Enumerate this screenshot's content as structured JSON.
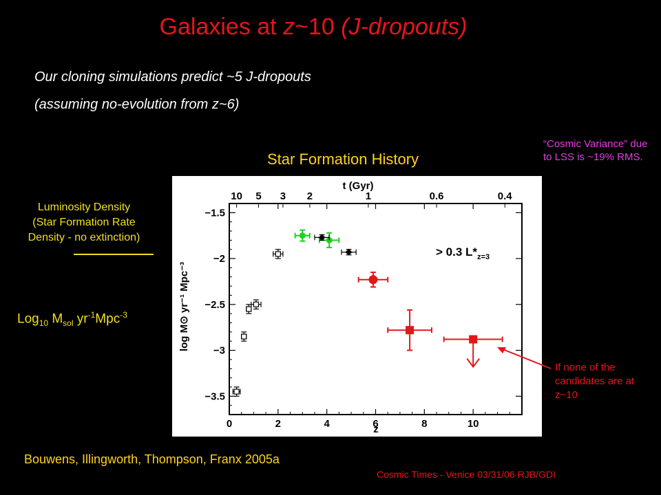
{
  "slide": {
    "title_part1": "Galaxies at ",
    "title_part2": "z",
    "title_part3": "~10 ",
    "title_part4": "(J-dropouts)",
    "intro_line1": "Our cloning simulations predict  ~5  J-dropouts",
    "intro_line2": "(assuming no-evolution from z~6)",
    "chart_title": "Star Formation History",
    "cosmic_variance": "“Cosmic Variance” due to LSS is ~19% RMS.",
    "lum_line1": "Luminosity Density",
    "lum_line2": "(Star Formation Rate",
    "lum_line3": "Density - no extinction)",
    "units_log": "Log",
    "units_log_sub": "10",
    "units_m": " M",
    "units_m_sub": "sol",
    "units_yr": " yr",
    "units_yr_sup": "-1",
    "units_mpc": "Mpc",
    "units_mpc_sup": "-3",
    "note_right": "If none of the candidates are at z~10",
    "citation": "Bouwens, Illingworth, Thompson, Franx 2005a",
    "footer": "Cosmic Times - Venice 03/31/06  RJB/GDI"
  },
  "colors": {
    "title": "#e8141b",
    "yellow": "#ffd21e",
    "magenta": "#e23ee2",
    "red_points": "#e01818",
    "green_points": "#1ed21e",
    "black_points": "#000000"
  },
  "chart_data": {
    "type": "scatter",
    "xlabel": "z",
    "ylabel": "log M⊙ yr⁻¹ Mpc⁻³",
    "top_axis_label": "t (Gyr)",
    "xlim": [
      0,
      12
    ],
    "ylim": [
      -3.7,
      -1.4
    ],
    "x_ticks": [
      "0",
      "2",
      "4",
      "6",
      "8",
      "10"
    ],
    "y_ticks": [
      "-1.5",
      "-2",
      "-2.5",
      "-3",
      "-3.5"
    ],
    "top_ticks": [
      {
        "label": "10",
        "z": 0.3
      },
      {
        "label": "5",
        "z": 1.2
      },
      {
        "label": "3",
        "z": 2.2
      },
      {
        "label": "2",
        "z": 3.3
      },
      {
        "label": "1",
        "z": 5.7
      },
      {
        "label": "0.6",
        "z": 8.5
      },
      {
        "label": "0.4",
        "z": 11.3
      }
    ],
    "annotation": "> 0.3 L*",
    "annotation_sub": "z=3",
    "series": [
      {
        "color": "#000000",
        "marker": "open-square",
        "points": [
          {
            "x": 0.3,
            "y": -3.45,
            "xerr": 0.15,
            "yerr": 0.05
          },
          {
            "x": 0.6,
            "y": -2.85,
            "xerr": 0.1,
            "yerr": 0.05
          },
          {
            "x": 0.8,
            "y": -2.55,
            "xerr": 0.1,
            "yerr": 0.05
          },
          {
            "x": 1.1,
            "y": -2.5,
            "xerr": 0.2,
            "yerr": 0.05
          },
          {
            "x": 2.0,
            "y": -1.95,
            "xerr": 0.2,
            "yerr": 0.05
          }
        ]
      },
      {
        "color": "#1ed21e",
        "marker": "filled-circle",
        "points": [
          {
            "x": 3.0,
            "y": -1.75,
            "xerr": 0.3,
            "yerr": 0.06
          },
          {
            "x": 4.1,
            "y": -1.8,
            "xerr": 0.4,
            "yerr": 0.08
          }
        ]
      },
      {
        "color": "#000000",
        "marker": "filled-diamond",
        "points": [
          {
            "x": 3.8,
            "y": -1.77,
            "xerr": 0.3,
            "yerr": 0.03
          },
          {
            "x": 4.9,
            "y": -1.93,
            "xerr": 0.3,
            "yerr": 0.03
          }
        ]
      },
      {
        "color": "#e01818",
        "marker": "filled-circle",
        "points": [
          {
            "x": 5.9,
            "y": -2.23,
            "xerr": 0.6,
            "yerr": 0.08
          }
        ]
      },
      {
        "color": "#e01818",
        "marker": "filled-square",
        "points": [
          {
            "x": 7.4,
            "y": -2.78,
            "xerr": 0.9,
            "yerr": 0.22
          }
        ]
      },
      {
        "color": "#e01818",
        "marker": "filled-square",
        "upper_limit": true,
        "points": [
          {
            "x": 10.0,
            "y": -2.88,
            "xerr": 1.2,
            "yerr": 0
          }
        ]
      }
    ]
  }
}
